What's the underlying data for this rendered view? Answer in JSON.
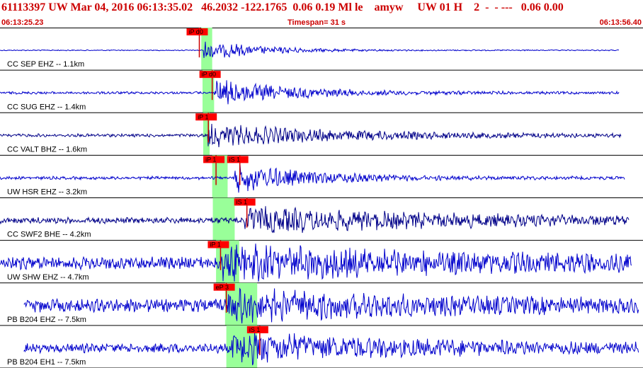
{
  "header": {
    "line1": "61113397 UW Mar 04, 2016 06:13:35.02   46.2032 -122.1765  0.06 0.19 Ml le    amyw     UW 01 H    2  -  - ---   0.06 0.00",
    "start_time": "06:13:25.23",
    "timespan": "Timespan=  31 s",
    "end_time": "06:13:56.40"
  },
  "channels": [
    {
      "label": "CC SEP EHZ -- 1.1km",
      "color": "#0000cc",
      "data_start": 0.0,
      "data_end": 0.963,
      "amp": 0.4,
      "noise": 0.02,
      "onset": 0.317,
      "decay": 0.09,
      "highlight": [
        0.313,
        0.33
      ],
      "picks": [
        {
          "label": "iP d0",
          "x": 0.31
        }
      ]
    },
    {
      "label": "CC SUG EHZ -- 1.4km",
      "color": "#0000cc",
      "data_start": 0.0,
      "data_end": 0.963,
      "amp": 0.5,
      "noise": 0.05,
      "onset": 0.333,
      "decay": 0.12,
      "highlight": [
        0.315,
        0.333
      ],
      "picks": [
        {
          "label": "iP d0",
          "x": 0.33
        }
      ]
    },
    {
      "label": "CC VALT BHZ -- 1.6km",
      "color": "#000088",
      "data_start": 0.0,
      "data_end": 0.966,
      "amp": 0.4,
      "noise": 0.06,
      "onset": 0.323,
      "decay": 0.22,
      "highlight": [
        0.316,
        0.326
      ],
      "picks": [
        {
          "label": "iP 1",
          "x": 0.324
        }
      ]
    },
    {
      "label": "UW HSR EHZ -- 3.2km",
      "color": "#0000cc",
      "data_start": 0.0,
      "data_end": 0.972,
      "amp": 0.55,
      "noise": 0.06,
      "onset": 0.365,
      "decay": 0.12,
      "highlight": [
        0.33,
        0.354
      ],
      "picks": [
        {
          "label": "iP 1",
          "x": 0.336
        },
        {
          "label": "iS 1",
          "x": 0.373
        }
      ]
    },
    {
      "label": "CC SWF2 BHE -- 4.2km",
      "color": "#000088",
      "data_start": 0.0,
      "data_end": 0.978,
      "amp": 0.45,
      "noise": 0.12,
      "onset": 0.38,
      "decay": 0.35,
      "highlight": [
        0.331,
        0.365
      ],
      "picks": [
        {
          "label": "iS 1",
          "x": 0.384
        }
      ]
    },
    {
      "label": "UW SHW EHZ -- 4.7km",
      "color": "#0000cc",
      "data_start": 0.0,
      "data_end": 0.983,
      "amp": 0.55,
      "noise": 0.25,
      "onset": 0.345,
      "decay": 0.4,
      "highlight": [
        0.336,
        0.372
      ],
      "picks": [
        {
          "label": "iP 1",
          "x": 0.343
        }
      ]
    },
    {
      "label": "PB B204 EHZ -- 7.5km",
      "color": "#0000cc",
      "data_start": 0.037,
      "data_end": 0.993,
      "amp": 0.5,
      "noise": 0.25,
      "onset": 0.355,
      "decay": 0.3,
      "highlight": [
        0.35,
        0.4
      ],
      "picks": [
        {
          "label": "eP 3",
          "x": 0.352
        }
      ]
    },
    {
      "label": "PB B204 EH1 -- 7.5km",
      "color": "#0000cc",
      "data_start": 0.037,
      "data_end": 0.993,
      "amp": 0.5,
      "noise": 0.18,
      "onset": 0.36,
      "decay": 0.3,
      "highlight": [
        0.352,
        0.4
      ],
      "picks": [
        {
          "label": "iS 1",
          "x": 0.404
        }
      ]
    }
  ]
}
